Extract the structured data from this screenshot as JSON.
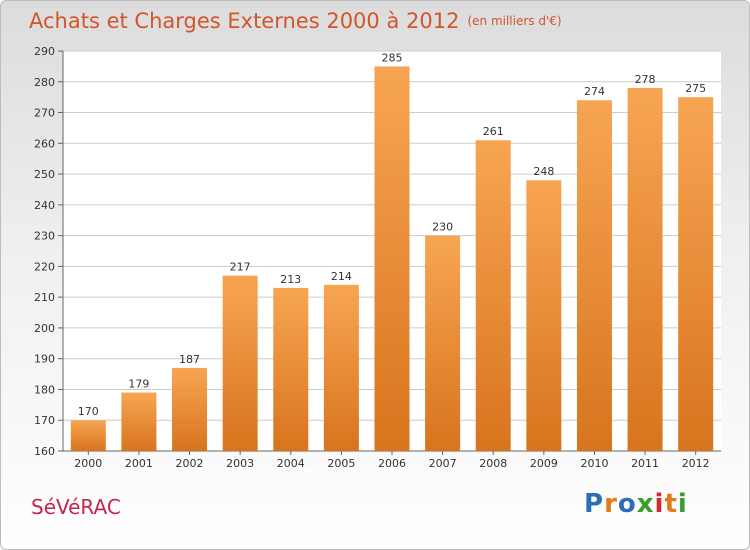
{
  "title": "Achats et Charges Externes 2000 à 2012",
  "unit": "(en milliers d'€)",
  "city": "SéVéRAC",
  "logo": {
    "letters": [
      "P",
      "r",
      "o",
      "x",
      "i",
      "t",
      "i"
    ],
    "colors": [
      "#2b6fb5",
      "#e07a1c",
      "#2b6fb5",
      "#3b9c2e",
      "#d7262c",
      "#e07a1c",
      "#3b9c2e"
    ]
  },
  "colors": {
    "bar_light": "#f7a552",
    "bar_dark": "#d8741e",
    "title": "#d2552b",
    "city": "#c4254f"
  },
  "chart_data": {
    "type": "bar",
    "categories": [
      "2000",
      "2001",
      "2002",
      "2003",
      "2004",
      "2005",
      "2006",
      "2007",
      "2008",
      "2009",
      "2010",
      "2011",
      "2012"
    ],
    "values": [
      170,
      179,
      187,
      217,
      213,
      214,
      285,
      230,
      261,
      248,
      274,
      278,
      275
    ],
    "yticks": [
      160,
      170,
      180,
      190,
      200,
      210,
      220,
      230,
      240,
      250,
      260,
      270,
      280,
      290
    ],
    "ylim": [
      160,
      290
    ],
    "grid": true
  }
}
